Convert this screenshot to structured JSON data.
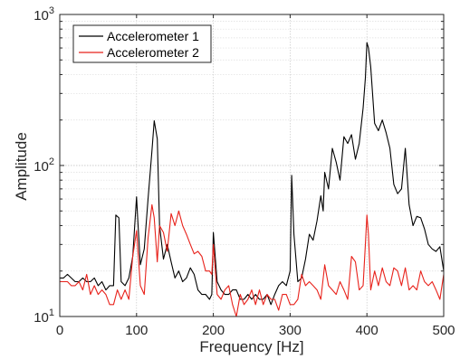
{
  "chart_data": {
    "type": "line",
    "xlabel": "Frequency [Hz]",
    "ylabel": "Amplitude",
    "xlim": [
      0,
      500
    ],
    "ylim": [
      10,
      1000
    ],
    "y_scale": "log",
    "grid": true,
    "minor_grid": true,
    "legend_position": "top-left",
    "x_ticks": [
      "0",
      "100",
      "200",
      "300",
      "400",
      "500"
    ],
    "y_ticks": [
      {
        "base": "10",
        "exp": "1",
        "value": 10
      },
      {
        "base": "10",
        "exp": "2",
        "value": 100
      },
      {
        "base": "10",
        "exp": "3",
        "value": 1000
      }
    ],
    "series": [
      {
        "name": "Accelerometer 1",
        "color": "#000000",
        "x": [
          0,
          5,
          10,
          15,
          20,
          25,
          30,
          35,
          40,
          45,
          50,
          55,
          60,
          65,
          70,
          73,
          77,
          80,
          85,
          90,
          95,
          100,
          102,
          105,
          110,
          115,
          120,
          123,
          127,
          130,
          135,
          140,
          145,
          150,
          155,
          160,
          165,
          170,
          175,
          180,
          185,
          190,
          195,
          198,
          200,
          205,
          210,
          215,
          220,
          225,
          230,
          235,
          240,
          245,
          250,
          255,
          260,
          265,
          270,
          275,
          280,
          285,
          290,
          295,
          300,
          302,
          305,
          310,
          315,
          320,
          325,
          330,
          335,
          340,
          343,
          345,
          350,
          355,
          360,
          365,
          370,
          375,
          380,
          385,
          390,
          395,
          398,
          400,
          402,
          405,
          410,
          415,
          420,
          425,
          430,
          435,
          440,
          445,
          450,
          455,
          460,
          465,
          470,
          475,
          480,
          485,
          490,
          495,
          500
        ],
        "y": [
          18,
          18,
          19,
          18,
          17,
          17,
          18,
          17,
          17,
          18,
          16,
          17,
          15,
          16,
          16,
          47,
          45,
          17,
          16,
          18,
          25,
          62,
          40,
          22,
          28,
          60,
          125,
          198,
          150,
          40,
          24,
          30,
          23,
          18,
          20,
          17,
          18,
          21,
          19,
          15,
          14,
          14,
          13,
          14,
          36,
          17,
          15,
          14,
          14,
          15,
          15,
          13,
          13,
          14,
          13,
          14,
          13,
          13,
          14,
          12,
          14,
          16,
          17,
          16,
          20,
          86,
          35,
          17,
          18,
          24,
          35,
          32,
          43,
          63,
          50,
          90,
          70,
          130,
          105,
          80,
          155,
          140,
          160,
          110,
          140,
          240,
          380,
          650,
          600,
          450,
          190,
          170,
          200,
          165,
          130,
          75,
          65,
          70,
          130,
          55,
          40,
          46,
          45,
          38,
          30,
          28,
          27,
          29,
          20
        ]
      },
      {
        "name": "Accelerometer 2",
        "color": "#e8221b",
        "x": [
          0,
          5,
          10,
          15,
          20,
          25,
          30,
          35,
          40,
          45,
          50,
          55,
          60,
          65,
          70,
          75,
          80,
          85,
          90,
          95,
          100,
          105,
          110,
          115,
          120,
          123,
          127,
          130,
          135,
          140,
          145,
          150,
          155,
          160,
          165,
          170,
          175,
          180,
          185,
          190,
          195,
          198,
          200,
          205,
          210,
          215,
          220,
          225,
          230,
          235,
          240,
          245,
          250,
          255,
          260,
          265,
          270,
          275,
          280,
          285,
          290,
          295,
          300,
          305,
          310,
          315,
          320,
          325,
          330,
          335,
          340,
          345,
          350,
          355,
          360,
          365,
          370,
          375,
          380,
          385,
          390,
          395,
          398,
          400,
          402,
          405,
          410,
          415,
          420,
          425,
          430,
          435,
          440,
          445,
          450,
          455,
          460,
          465,
          470,
          475,
          480,
          485,
          490,
          495,
          500
        ],
        "y": [
          17,
          17,
          17,
          16,
          16,
          17,
          15,
          19,
          14,
          16,
          14,
          15,
          14,
          12,
          12,
          15,
          13,
          15,
          13,
          25,
          37,
          16,
          14,
          33,
          55,
          45,
          23,
          40,
          36,
          27,
          48,
          40,
          50,
          40,
          35,
          30,
          26,
          27,
          25,
          20,
          20,
          19,
          30,
          14,
          13,
          15,
          16,
          12,
          10,
          14,
          12,
          13,
          15,
          12,
          15,
          12,
          14,
          13,
          13,
          11,
          14,
          14,
          12,
          12,
          13,
          19,
          16,
          17,
          16,
          15,
          13,
          22,
          16,
          15,
          14,
          17,
          15,
          13,
          25,
          23,
          15,
          16,
          30,
          47,
          35,
          15,
          20,
          16,
          21,
          17,
          16,
          21,
          20,
          16,
          21,
          15,
          16,
          15,
          20,
          17,
          16,
          17,
          15,
          13,
          19
        ]
      }
    ]
  }
}
